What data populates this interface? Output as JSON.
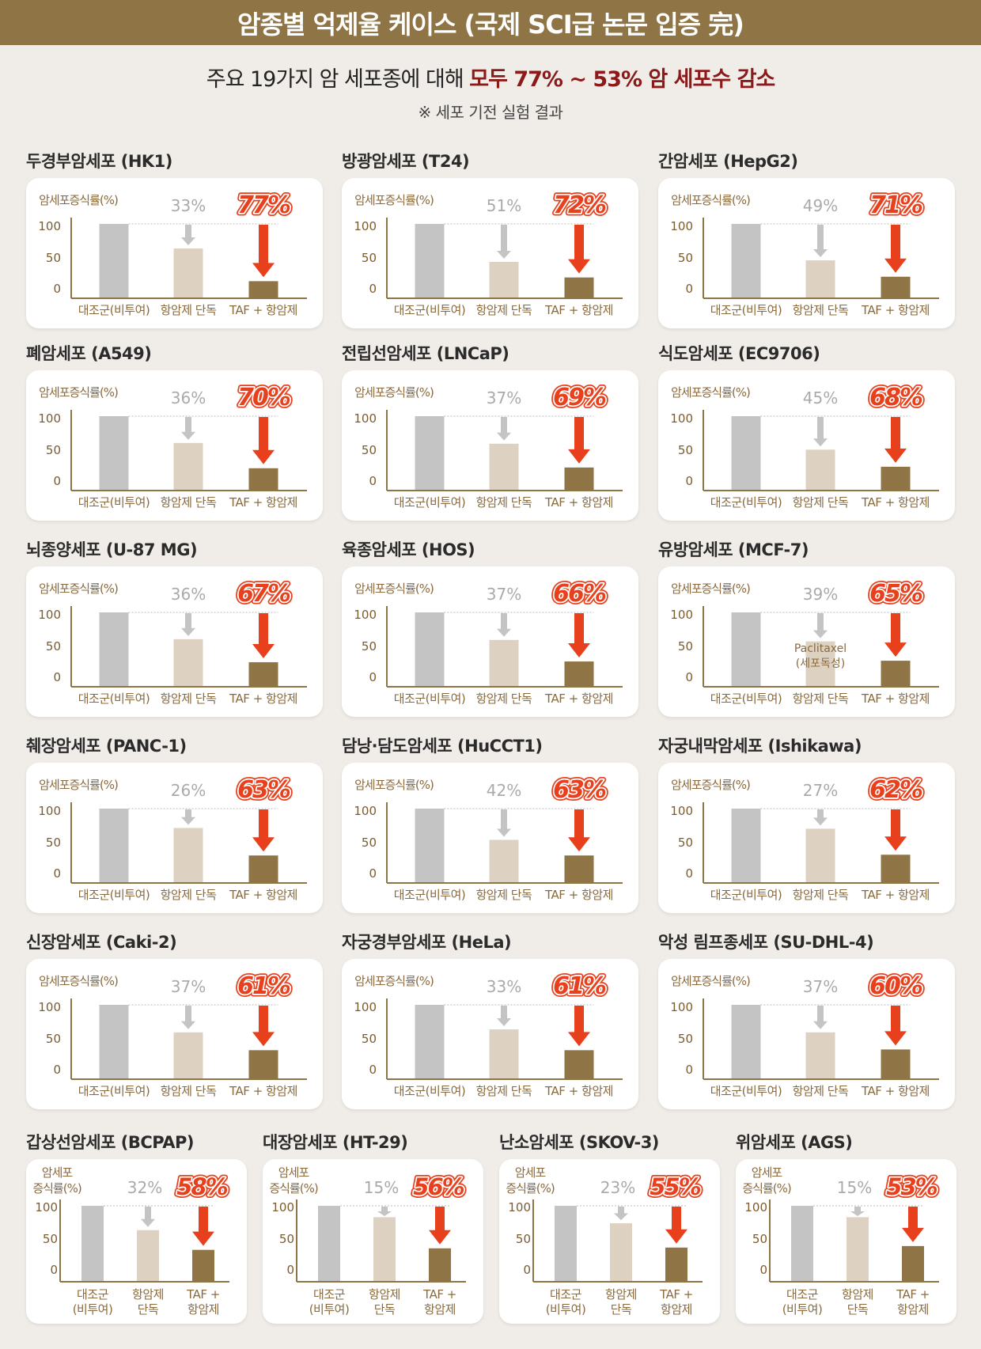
{
  "header": {
    "title": "암종별 억제율 케이스 (국제 SCI급 논문 입증 完)"
  },
  "summary": {
    "text_prefix": "주요 19가지 암 세포종에 대해 ",
    "text_highlight": "모두 77% ~ 53% 암 세포수 감소",
    "note": "※ 세포 기전 실험 결과"
  },
  "colors": {
    "header_bg": "#8f7545",
    "control_bar": "#c4c4c4",
    "drug_bar": "#ddd2c2",
    "combo_bar": "#8f7545",
    "highlight_red": "#e8401c",
    "summary_red": "#8b1a1a",
    "axis": "#8f7545"
  },
  "chart_data": [
    {
      "type": "bar",
      "title": "두경부암세포 (HK1)",
      "ylabel": "암세포증식률(%)",
      "yticks": [
        "100",
        "50",
        "0"
      ],
      "ylim": [
        0,
        100
      ],
      "categories": [
        "대조군(비투여)",
        "항암제 단독",
        "TAF + 항암제"
      ],
      "values": [
        100,
        67,
        23
      ],
      "drug_reduction": "33%",
      "combo_reduction": "77%"
    },
    {
      "type": "bar",
      "title": "방광암세포 (T24)",
      "ylabel": "암세포증식률(%)",
      "yticks": [
        "100",
        "50",
        "0"
      ],
      "ylim": [
        0,
        100
      ],
      "categories": [
        "대조군(비투여)",
        "항암제 단독",
        "TAF + 항암제"
      ],
      "values": [
        100,
        49,
        28
      ],
      "drug_reduction": "51%",
      "combo_reduction": "72%"
    },
    {
      "type": "bar",
      "title": "간암세포 (HepG2)",
      "ylabel": "암세포증식률(%)",
      "yticks": [
        "100",
        "50",
        "0"
      ],
      "ylim": [
        0,
        100
      ],
      "categories": [
        "대조군(비투여)",
        "항암제 단독",
        "TAF + 항암제"
      ],
      "values": [
        100,
        51,
        29
      ],
      "drug_reduction": "49%",
      "combo_reduction": "71%"
    },
    {
      "type": "bar",
      "title": "폐암세포 (A549)",
      "ylabel": "암세포증식률(%)",
      "yticks": [
        "100",
        "50",
        "0"
      ],
      "ylim": [
        0,
        100
      ],
      "categories": [
        "대조군(비투여)",
        "항암제 단독",
        "TAF + 항암제"
      ],
      "values": [
        100,
        64,
        30
      ],
      "drug_reduction": "36%",
      "combo_reduction": "70%"
    },
    {
      "type": "bar",
      "title": "전립선암세포 (LNCaP)",
      "ylabel": "암세포증식률(%)",
      "yticks": [
        "100",
        "50",
        "0"
      ],
      "ylim": [
        0,
        100
      ],
      "categories": [
        "대조군(비투여)",
        "항암제 단독",
        "TAF + 항암제"
      ],
      "values": [
        100,
        63,
        31
      ],
      "drug_reduction": "37%",
      "combo_reduction": "69%"
    },
    {
      "type": "bar",
      "title": "식도암세포 (EC9706)",
      "ylabel": "암세포증식률(%)",
      "yticks": [
        "100",
        "50",
        "0"
      ],
      "ylim": [
        0,
        100
      ],
      "categories": [
        "대조군(비투여)",
        "항암제 단독",
        "TAF + 항암제"
      ],
      "values": [
        100,
        55,
        32
      ],
      "drug_reduction": "45%",
      "combo_reduction": "68%"
    },
    {
      "type": "bar",
      "title": "뇌종양세포 (U-87 MG)",
      "ylabel": "암세포증식률(%)",
      "yticks": [
        "100",
        "50",
        "0"
      ],
      "ylim": [
        0,
        100
      ],
      "categories": [
        "대조군(비투여)",
        "항암제 단독",
        "TAF + 항암제"
      ],
      "values": [
        100,
        64,
        33
      ],
      "drug_reduction": "36%",
      "combo_reduction": "67%"
    },
    {
      "type": "bar",
      "title": "육종암세포 (HOS)",
      "ylabel": "암세포증식률(%)",
      "yticks": [
        "100",
        "50",
        "0"
      ],
      "ylim": [
        0,
        100
      ],
      "categories": [
        "대조군(비투여)",
        "항암제 단독",
        "TAF + 항암제"
      ],
      "values": [
        100,
        63,
        34
      ],
      "drug_reduction": "37%",
      "combo_reduction": "66%"
    },
    {
      "type": "bar",
      "title": "유방암세포 (MCF-7)",
      "ylabel": "암세포증식률(%)",
      "yticks": [
        "100",
        "50",
        "0"
      ],
      "ylim": [
        0,
        100
      ],
      "categories": [
        "대조군(비투여)",
        "항암제 단독",
        "TAF + 항암제"
      ],
      "values": [
        100,
        61,
        35
      ],
      "drug_reduction": "39%",
      "combo_reduction": "65%",
      "annotation": "Paclitaxel\n(세포독성)"
    },
    {
      "type": "bar",
      "title": "췌장암세포 (PANC-1)",
      "ylabel": "암세포증식률(%)",
      "yticks": [
        "100",
        "50",
        "0"
      ],
      "ylim": [
        0,
        100
      ],
      "categories": [
        "대조군(비투여)",
        "항암제 단독",
        "TAF + 항암제"
      ],
      "values": [
        100,
        74,
        37
      ],
      "drug_reduction": "26%",
      "combo_reduction": "63%"
    },
    {
      "type": "bar",
      "title": "담낭·담도암세포 (HuCCT1)",
      "ylabel": "암세포증식률(%)",
      "yticks": [
        "100",
        "50",
        "0"
      ],
      "ylim": [
        0,
        100
      ],
      "categories": [
        "대조군(비투여)",
        "항암제 단독",
        "TAF + 항암제"
      ],
      "values": [
        100,
        58,
        37
      ],
      "drug_reduction": "42%",
      "combo_reduction": "63%"
    },
    {
      "type": "bar",
      "title": "자궁내막암세포 (Ishikawa)",
      "ylabel": "암세포증식률(%)",
      "yticks": [
        "100",
        "50",
        "0"
      ],
      "ylim": [
        0,
        100
      ],
      "categories": [
        "대조군(비투여)",
        "항암제 단독",
        "TAF + 항암제"
      ],
      "values": [
        100,
        73,
        38
      ],
      "drug_reduction": "27%",
      "combo_reduction": "62%"
    },
    {
      "type": "bar",
      "title": "신장암세포 (Caki-2)",
      "ylabel": "암세포증식률(%)",
      "yticks": [
        "100",
        "50",
        "0"
      ],
      "ylim": [
        0,
        100
      ],
      "categories": [
        "대조군(비투여)",
        "항암제 단독",
        "TAF + 항암제"
      ],
      "values": [
        100,
        63,
        39
      ],
      "drug_reduction": "37%",
      "combo_reduction": "61%"
    },
    {
      "type": "bar",
      "title": "자궁경부암세포 (HeLa)",
      "ylabel": "암세포증식률(%)",
      "yticks": [
        "100",
        "50",
        "0"
      ],
      "ylim": [
        0,
        100
      ],
      "categories": [
        "대조군(비투여)",
        "항암제 단독",
        "TAF + 항암제"
      ],
      "values": [
        100,
        67,
        39
      ],
      "drug_reduction": "33%",
      "combo_reduction": "61%"
    },
    {
      "type": "bar",
      "title": "악성 림프종세포 (SU-DHL-4)",
      "ylabel": "암세포증식률(%)",
      "yticks": [
        "100",
        "50",
        "0"
      ],
      "ylim": [
        0,
        100
      ],
      "categories": [
        "대조군(비투여)",
        "항암제 단독",
        "TAF + 항암제"
      ],
      "values": [
        100,
        63,
        40
      ],
      "drug_reduction": "37%",
      "combo_reduction": "60%"
    },
    {
      "type": "bar",
      "title": "갑상선암세포 (BCPAP)",
      "ylabel": "암세포\n증식률(%)",
      "yticks": [
        "100",
        "50",
        "0"
      ],
      "ylim": [
        0,
        100
      ],
      "categories": [
        "대조군\n(비투여)",
        "항암제\n단독",
        "TAF +\n항암제"
      ],
      "values": [
        100,
        68,
        42
      ],
      "drug_reduction": "32%",
      "combo_reduction": "58%"
    },
    {
      "type": "bar",
      "title": "대장암세포 (HT-29)",
      "ylabel": "암세포\n증식률(%)",
      "yticks": [
        "100",
        "50",
        "0"
      ],
      "ylim": [
        0,
        100
      ],
      "categories": [
        "대조군\n(비투여)",
        "항암제\n단독",
        "TAF +\n항암제"
      ],
      "values": [
        100,
        85,
        44
      ],
      "drug_reduction": "15%",
      "combo_reduction": "56%"
    },
    {
      "type": "bar",
      "title": "난소암세포 (SKOV-3)",
      "ylabel": "암세포\n증식률(%)",
      "yticks": [
        "100",
        "50",
        "0"
      ],
      "ylim": [
        0,
        100
      ],
      "categories": [
        "대조군\n(비투여)",
        "항암제\n단독",
        "TAF +\n항암제"
      ],
      "values": [
        100,
        77,
        45
      ],
      "drug_reduction": "23%",
      "combo_reduction": "55%"
    },
    {
      "type": "bar",
      "title": "위암세포 (AGS)",
      "ylabel": "암세포\n증식률(%)",
      "yticks": [
        "100",
        "50",
        "0"
      ],
      "ylim": [
        0,
        100
      ],
      "categories": [
        "대조군\n(비투여)",
        "항암제\n단독",
        "TAF +\n항암제"
      ],
      "values": [
        100,
        85,
        47
      ],
      "drug_reduction": "15%",
      "combo_reduction": "53%"
    }
  ]
}
